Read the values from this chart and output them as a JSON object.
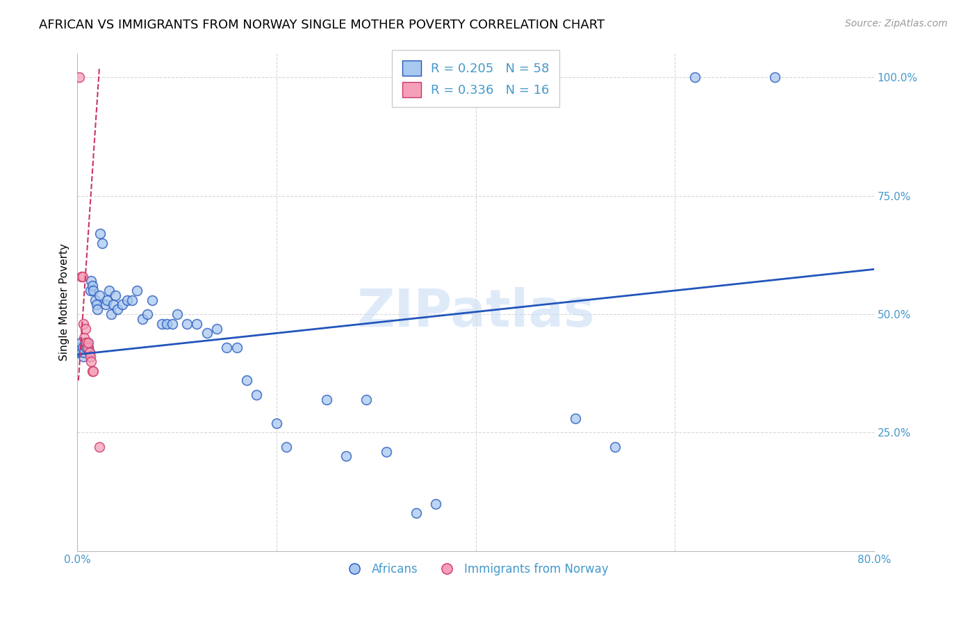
{
  "title": "AFRICAN VS IMMIGRANTS FROM NORWAY SINGLE MOTHER POVERTY CORRELATION CHART",
  "source": "Source: ZipAtlas.com",
  "ylabel": "Single Mother Poverty",
  "watermark": "ZIPatlas",
  "blue_color": "#a8c8f0",
  "pink_color": "#f5a0b8",
  "blue_line_color": "#2255bb",
  "pink_line_color": "#cc3366",
  "grid_color": "#d8d8d8",
  "axis_label_color": "#4499cc",
  "blue_scatter": [
    [
      0.001,
      0.42
    ],
    [
      0.002,
      0.43
    ],
    [
      0.003,
      0.44
    ],
    [
      0.004,
      0.42
    ],
    [
      0.005,
      0.43
    ],
    [
      0.006,
      0.41
    ],
    [
      0.007,
      0.42
    ],
    [
      0.008,
      0.44
    ],
    [
      0.009,
      0.43
    ],
    [
      0.01,
      0.44
    ],
    [
      0.011,
      0.43
    ],
    [
      0.012,
      0.42
    ],
    [
      0.013,
      0.55
    ],
    [
      0.014,
      0.57
    ],
    [
      0.015,
      0.56
    ],
    [
      0.016,
      0.55
    ],
    [
      0.018,
      0.53
    ],
    [
      0.019,
      0.52
    ],
    [
      0.02,
      0.51
    ],
    [
      0.022,
      0.54
    ],
    [
      0.023,
      0.67
    ],
    [
      0.025,
      0.65
    ],
    [
      0.028,
      0.52
    ],
    [
      0.03,
      0.53
    ],
    [
      0.032,
      0.55
    ],
    [
      0.034,
      0.5
    ],
    [
      0.036,
      0.52
    ],
    [
      0.038,
      0.54
    ],
    [
      0.04,
      0.51
    ],
    [
      0.045,
      0.52
    ],
    [
      0.05,
      0.53
    ],
    [
      0.055,
      0.53
    ],
    [
      0.06,
      0.55
    ],
    [
      0.065,
      0.49
    ],
    [
      0.07,
      0.5
    ],
    [
      0.075,
      0.53
    ],
    [
      0.085,
      0.48
    ],
    [
      0.09,
      0.48
    ],
    [
      0.095,
      0.48
    ],
    [
      0.1,
      0.5
    ],
    [
      0.11,
      0.48
    ],
    [
      0.12,
      0.48
    ],
    [
      0.13,
      0.46
    ],
    [
      0.14,
      0.47
    ],
    [
      0.15,
      0.43
    ],
    [
      0.16,
      0.43
    ],
    [
      0.17,
      0.36
    ],
    [
      0.18,
      0.33
    ],
    [
      0.2,
      0.27
    ],
    [
      0.21,
      0.22
    ],
    [
      0.25,
      0.32
    ],
    [
      0.27,
      0.2
    ],
    [
      0.29,
      0.32
    ],
    [
      0.31,
      0.21
    ],
    [
      0.34,
      0.08
    ],
    [
      0.36,
      0.1
    ],
    [
      0.5,
      0.28
    ],
    [
      0.54,
      0.22
    ],
    [
      0.62,
      1.0
    ],
    [
      0.7,
      1.0
    ]
  ],
  "pink_scatter": [
    [
      0.002,
      1.0
    ],
    [
      0.004,
      0.58
    ],
    [
      0.005,
      0.58
    ],
    [
      0.006,
      0.48
    ],
    [
      0.007,
      0.45
    ],
    [
      0.008,
      0.47
    ],
    [
      0.009,
      0.44
    ],
    [
      0.01,
      0.43
    ],
    [
      0.011,
      0.44
    ],
    [
      0.012,
      0.42
    ],
    [
      0.013,
      0.41
    ],
    [
      0.014,
      0.4
    ],
    [
      0.015,
      0.38
    ],
    [
      0.016,
      0.38
    ],
    [
      0.022,
      0.22
    ]
  ],
  "blue_trend_x": [
    0.0,
    0.8
  ],
  "blue_trend_y": [
    0.415,
    0.595
  ],
  "pink_trend_x": [
    0.001,
    0.022
  ],
  "pink_trend_y": [
    0.36,
    1.02
  ],
  "xlim": [
    0.0,
    0.8
  ],
  "ylim": [
    0.0,
    1.05
  ],
  "yticks": [
    0.25,
    0.5,
    0.75,
    1.0
  ],
  "ytick_labels": [
    "25.0%",
    "50.0%",
    "75.0%",
    "100.0%"
  ],
  "title_fontsize": 13,
  "label_fontsize": 11,
  "tick_fontsize": 11,
  "source_fontsize": 10,
  "marker_size": 100,
  "marker_linewidth": 1.2
}
